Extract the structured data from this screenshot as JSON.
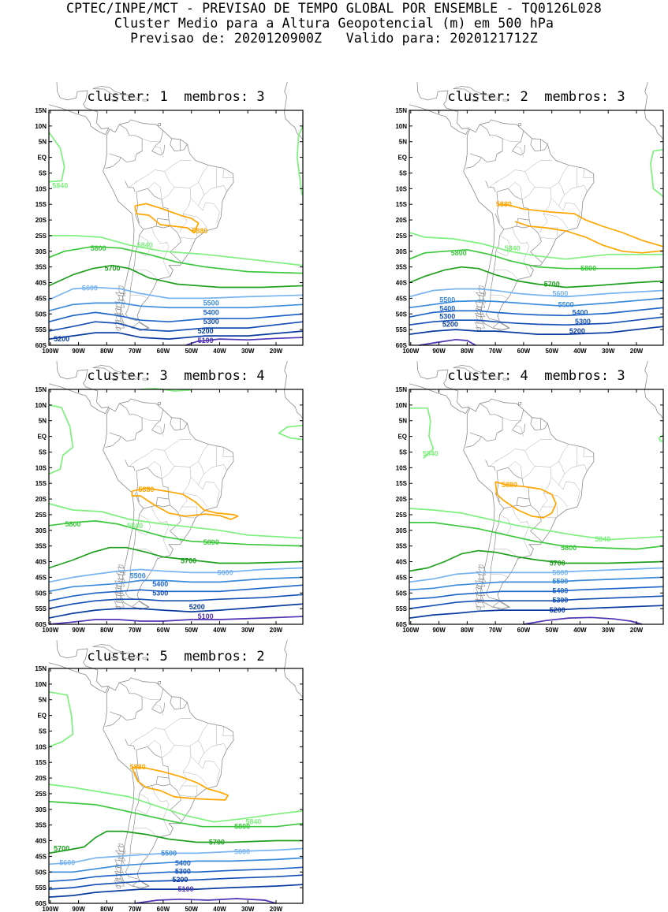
{
  "header": {
    "line1": "CPTEC/INPE/MCT - PREVISAO DE TEMPO GLOBAL POR ENSEMBLE - TQ0126L028",
    "line2": "Cluster Medio para a Altura Geopotencial (m) em 500 hPa",
    "line3": "Previsao de: 2020120900Z   Valido para: 2020121712Z"
  },
  "axes": {
    "lat_labels": [
      "15N",
      "10N",
      "5N",
      "EQ",
      "5S",
      "10S",
      "15S",
      "20S",
      "25S",
      "30S",
      "35S",
      "40S",
      "45S",
      "50S",
      "55S",
      "60S"
    ],
    "lon_labels": [
      "100W",
      "90W",
      "80W",
      "70W",
      "60W",
      "50W",
      "40W",
      "30W",
      "20W"
    ]
  },
  "colors": {
    "c5880": "#ffa500",
    "c5840": "#7df07d",
    "c5800": "#3cc83c",
    "c5700": "#1ea01e",
    "c5600": "#78b4f0",
    "c5500": "#3c8cdc",
    "c5400": "#1e64c8",
    "c5300": "#1450b4",
    "c5200": "#0a3ca0",
    "c5100": "#5032b4"
  },
  "panels": [
    {
      "title": "cluster: 1  membros: 3"
    },
    {
      "title": "cluster: 2  membros: 3"
    },
    {
      "title": "cluster: 3  membros: 4"
    },
    {
      "title": "cluster: 4  membros: 3"
    },
    {
      "title": "cluster: 5  membros: 2"
    }
  ],
  "contour_labels": {
    "p1": [
      "5840",
      "5880",
      "5800",
      "5840",
      "5700",
      "5600",
      "5500",
      "5400",
      "5300",
      "5200",
      "5200",
      "5100"
    ],
    "p2": [
      "5880",
      "5800",
      "5840",
      "5800",
      "5700",
      "5600",
      "5500",
      "5500",
      "5400",
      "5400",
      "5300",
      "5300",
      "5200",
      "5200"
    ],
    "p3": [
      "5880",
      "5800",
      "5840",
      "5800",
      "5700",
      "5600",
      "5500",
      "5400",
      "5300",
      "5200",
      "5100"
    ],
    "p4": [
      "5840",
      "5880",
      "5840",
      "5800",
      "5700",
      "5600",
      "5500",
      "5400",
      "5300",
      "5200"
    ],
    "p5": [
      "5880",
      "5840",
      "5800",
      "5700",
      "5700",
      "5600",
      "5600",
      "5500",
      "5400",
      "5300",
      "5200",
      "5100"
    ]
  }
}
